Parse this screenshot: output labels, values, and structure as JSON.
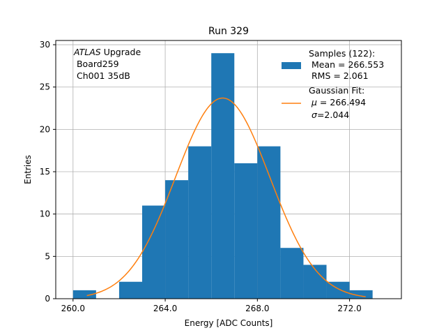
{
  "chart_data": {
    "type": "bar",
    "title": "Run 329",
    "xlabel": "Energy [ADC Counts]",
    "ylabel": "Entries",
    "xlim": [
      259.25,
      274.25
    ],
    "ylim": [
      0,
      30.5
    ],
    "xticks": [
      260.0,
      264.0,
      268.0,
      272.0
    ],
    "xtick_labels": [
      "260.0",
      "264.0",
      "268.0",
      "272.0"
    ],
    "yticks": [
      0,
      5,
      10,
      15,
      20,
      25,
      30
    ],
    "ytick_labels": [
      "0",
      "5",
      "10",
      "15",
      "20",
      "25",
      "30"
    ],
    "grid": true,
    "bin_edges": [
      260,
      261,
      262,
      263,
      264,
      265,
      266,
      267,
      268,
      269,
      270,
      271,
      272,
      273
    ],
    "values": [
      1,
      0,
      2,
      11,
      14,
      18,
      29,
      16,
      18,
      6,
      4,
      2,
      1
    ],
    "fit": {
      "type": "gaussian",
      "mu": 266.494,
      "sigma": 2.044,
      "amplitude": 23.7,
      "x_range": [
        260.6,
        272.7
      ]
    },
    "annotation": {
      "lines": [
        {
          "italic": "ATLAS",
          "text": " Upgrade"
        },
        {
          "italic": "",
          "text": " Board259"
        },
        {
          "italic": "",
          "text": " Ch001 35dB"
        }
      ]
    },
    "legend": {
      "placement": "top-right",
      "samples": {
        "label": "Samples (122):",
        "mean": " Mean = 266.553",
        "rms": " RMS = 2.061"
      },
      "fit": {
        "label": "Gaussian Fit:",
        "mu_symbol": "μ",
        "mu_text": " = 266.494",
        "sigma_symbol": "σ",
        "sigma_text": "=2.044"
      }
    },
    "colors": {
      "bars": "#1f77b4",
      "fit": "#ff7f0e",
      "grid": "#b0b0b0"
    }
  }
}
